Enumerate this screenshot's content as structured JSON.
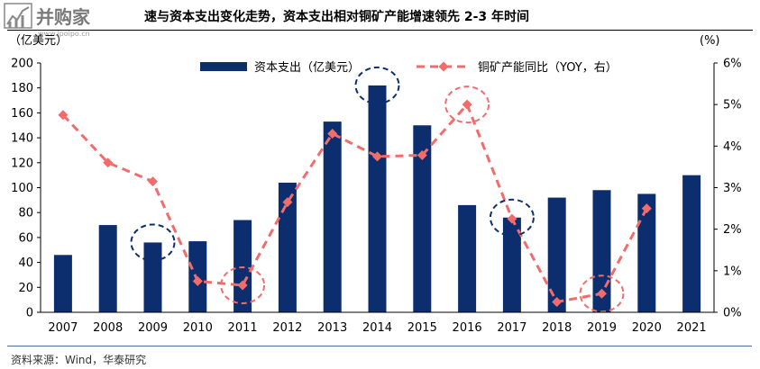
{
  "title": "速与资本支出变化走势，资本支出相对铜矿产能增速领先 2-3 年时间",
  "watermark": {
    "brand": "并购家",
    "url": "www.ipoipo.cn"
  },
  "source": "资料来源：Wind，华泰研究",
  "chart_data": {
    "type": "bar+line",
    "categories": [
      "2007",
      "2008",
      "2009",
      "2010",
      "2011",
      "2012",
      "2013",
      "2014",
      "2015",
      "2016",
      "2017",
      "2018",
      "2019",
      "2020",
      "2021"
    ],
    "series": [
      {
        "name": "资本支出（亿美元）",
        "type": "bar",
        "axis": "left",
        "color": "#0d2e6e",
        "values": [
          46,
          70,
          56,
          57,
          74,
          104,
          153,
          182,
          150,
          86,
          76,
          92,
          98,
          95,
          110
        ]
      },
      {
        "name": "铜矿产能同比（YOY，右）",
        "type": "line",
        "axis": "right",
        "color": "#f26c6c",
        "values": [
          4.75,
          3.6,
          3.15,
          0.75,
          0.65,
          2.65,
          4.3,
          3.75,
          3.78,
          5.0,
          2.25,
          0.25,
          0.45,
          2.5,
          null
        ]
      }
    ],
    "left_axis": {
      "label": "（亿美元）",
      "ylim": [
        0,
        200
      ],
      "ticks": [
        "0",
        "20",
        "40",
        "60",
        "80",
        "100",
        "120",
        "140",
        "160",
        "180",
        "200"
      ]
    },
    "right_axis": {
      "label": "(%)",
      "ylim": [
        0,
        6
      ],
      "ticks": [
        "0%",
        "1%",
        "2%",
        "3%",
        "4%",
        "5%",
        "6%"
      ]
    },
    "legend_position": "top-center",
    "grid": false,
    "highlight_circles": [
      {
        "category": "2009",
        "series": "bar",
        "color": "#0d2e6e"
      },
      {
        "category": "2011",
        "series": "line",
        "color": "#f26c6c"
      },
      {
        "category": "2014",
        "series": "bar",
        "color": "#0d2e6e"
      },
      {
        "category": "2016",
        "series": "line",
        "color": "#f26c6c"
      },
      {
        "category": "2017",
        "series": "bar",
        "color": "#0d2e6e"
      },
      {
        "category": "2019",
        "series": "line",
        "color": "#f26c6c"
      }
    ]
  }
}
